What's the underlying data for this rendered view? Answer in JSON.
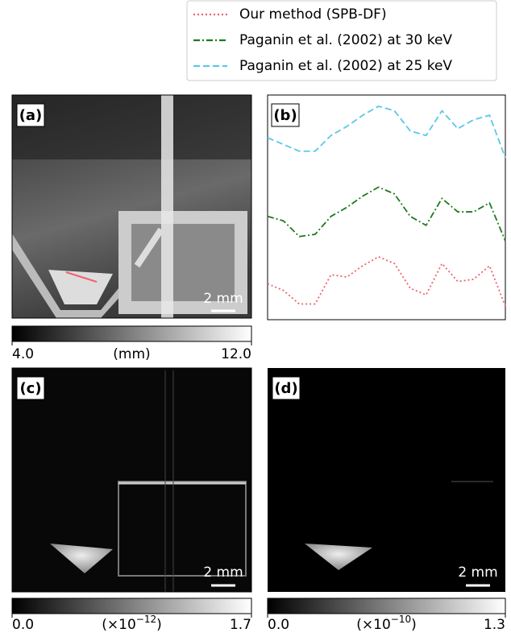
{
  "chart_data": {
    "type": "line",
    "panel_label": "(b)",
    "ylim": [
      0,
      100
    ],
    "series": [
      {
        "name": "Our method (SPB-DF)",
        "color": "#f0606a",
        "dash": "2,3",
        "values": [
          16,
          13,
          7,
          7,
          20,
          19,
          24,
          28,
          25,
          14,
          11,
          25,
          17,
          18,
          24,
          6
        ]
      },
      {
        "name": "Paganin et al. (2002) at 30 keV",
        "color": "#1f7a1f",
        "dash": "8,3,2,3",
        "values": [
          46,
          44,
          37,
          38,
          46,
          50,
          55,
          59,
          56,
          46,
          42,
          54,
          48,
          48,
          52,
          35
        ]
      },
      {
        "name": "Paganin et al. (2002) at 25 keV",
        "color": "#5bc8e8",
        "dash": "8,4",
        "values": [
          81,
          78,
          75,
          75,
          82,
          86,
          91,
          95,
          93,
          84,
          82,
          93,
          85,
          89,
          91,
          72
        ]
      }
    ]
  },
  "images": [
    {
      "label": "(a)",
      "scale_bar": "2 mm",
      "colorbar": {
        "lim": [
          4,
          12
        ],
        "ticks": [
          {
            "value": 4,
            "label": "4.0"
          },
          {
            "value": 12,
            "label": "12.0"
          }
        ],
        "unit": "(mm)"
      }
    },
    {
      "label": "(c)",
      "scale_bar": "2 mm",
      "colorbar": {
        "lim": [
          0,
          1.7
        ],
        "ticks": [
          {
            "value": 0,
            "label": "0.0"
          },
          1.7
        ],
        "unit": "(×10",
        "exponent": "−12",
        "unit_end": ")"
      }
    },
    {
      "label": "(d)",
      "scale_bar": "2 mm",
      "colorbar": {
        "lim": [
          0,
          1.3
        ],
        "ticks": [
          {
            "value": 0,
            "label": "0.0"
          },
          1.3
        ],
        "unit": "(×10",
        "exponent": "−10",
        "unit_end": ")"
      }
    }
  ]
}
